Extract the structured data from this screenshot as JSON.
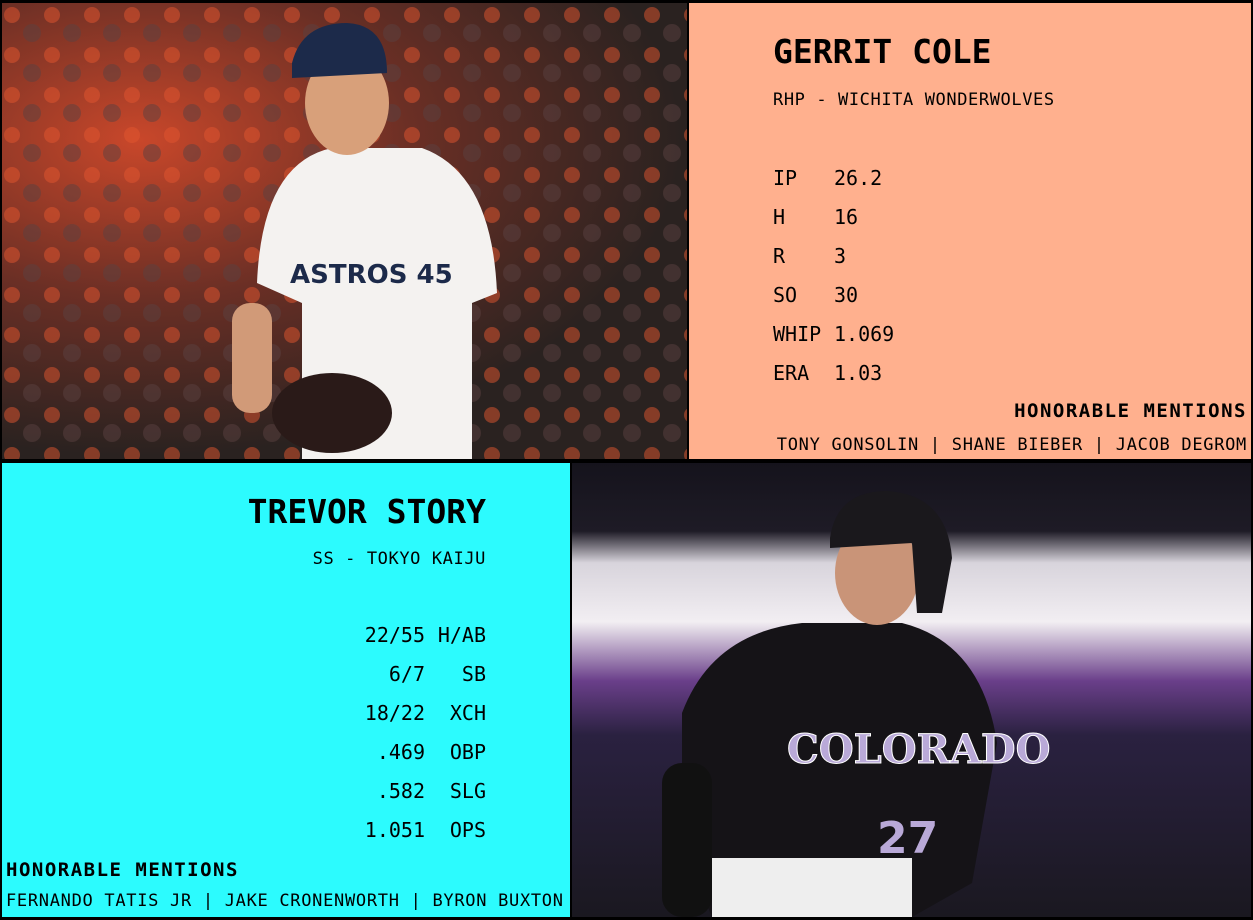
{
  "pitcher": {
    "name": "GERRIT COLE",
    "position_team": "RHP - WICHITA WONDERWOLVES",
    "stats": [
      {
        "label": "IP",
        "value": "26.2"
      },
      {
        "label": "H",
        "value": "16"
      },
      {
        "label": "R",
        "value": "3"
      },
      {
        "label": "SO",
        "value": "30"
      },
      {
        "label": "WHIP",
        "value": "1.069"
      },
      {
        "label": "ERA",
        "value": "1.03"
      }
    ],
    "honorable_mentions_title": "HONORABLE MENTIONS",
    "honorable_mentions": "TONY GONSOLIN | SHANE BIEBER | JACOB DEGROM",
    "panel_color": "#FFB08E"
  },
  "hitter": {
    "name": "TREVOR STORY",
    "position_team": "SS - TOKYO KAIJU",
    "stats": [
      {
        "value": "22/55",
        "label": "H/AB"
      },
      {
        "value": "6/7",
        "label": "SB"
      },
      {
        "value": "18/22",
        "label": "XCH"
      },
      {
        "value": ".469",
        "label": "OBP"
      },
      {
        "value": ".582",
        "label": "SLG"
      },
      {
        "value": "1.051",
        "label": "OPS"
      }
    ],
    "honorable_mentions_title": "HONORABLE MENTIONS",
    "honorable_mentions": "FERNANDO TATIS JR | JAKE CRONENWORTH | BYRON BUXTON",
    "panel_color": "#2CFBFE"
  },
  "photos": {
    "pitcher_jersey": "ASTROS 45",
    "hitter_jersey": "COLORADO 27"
  }
}
